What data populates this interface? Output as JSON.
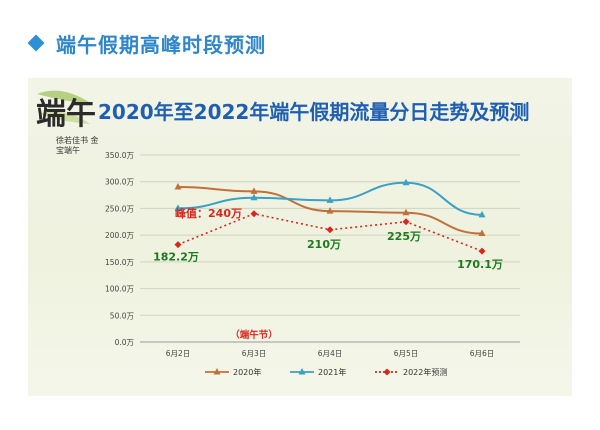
{
  "header": {
    "title": "端午假期高峰时段预测"
  },
  "calligraphy": {
    "main": "端午",
    "small": "徐若佳书 金宝端午"
  },
  "chart_data": {
    "type": "line",
    "title": "2020年至2022年端午假期流量分日走势及预测",
    "categories": [
      "6月2日",
      "6月3日",
      "6月4日",
      "6月5日",
      "6月6日"
    ],
    "y_ticks": [
      "0.0万",
      "50.0万",
      "100.0万",
      "150.0万",
      "200.0万",
      "250.0万",
      "300.0万",
      "350.0万"
    ],
    "ylim": [
      0,
      350
    ],
    "series": [
      {
        "name": "2020年",
        "color": "#c0713a",
        "marker": "triangle",
        "dash": false,
        "values": [
          290,
          282,
          245,
          242,
          203
        ]
      },
      {
        "name": "2021年",
        "color": "#3aa0c4",
        "marker": "triangle",
        "dash": false,
        "values": [
          250,
          270,
          265,
          298,
          238
        ]
      },
      {
        "name": "2022年预测",
        "color": "#d6281f",
        "marker": "diamond",
        "dash": true,
        "values": [
          182.2,
          240,
          210,
          225,
          170.1
        ]
      }
    ],
    "annotations": [
      {
        "text": "182.2万",
        "color": "#1e7a1e",
        "category": "6月2日",
        "value": 182.2
      },
      {
        "text": "峰值：240万",
        "color": "#d6281f",
        "category": "6月3日",
        "value": 240
      },
      {
        "text": "210万",
        "color": "#1e7a1e",
        "category": "6月4日",
        "value": 210
      },
      {
        "text": "225万",
        "color": "#1e7a1e",
        "category": "6月5日",
        "value": 225
      },
      {
        "text": "170.1万",
        "color": "#1e7a1e",
        "category": "6月6日",
        "value": 170.1
      }
    ],
    "holiday_label": "（端午节）"
  }
}
